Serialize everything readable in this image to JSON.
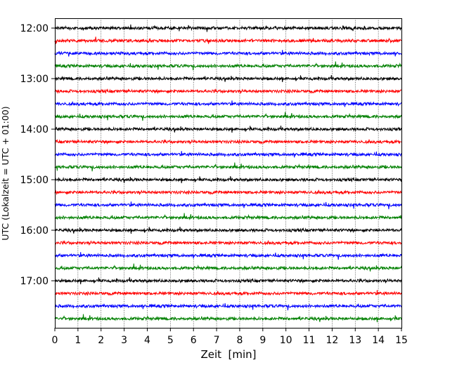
{
  "chart_data": {
    "type": "line",
    "title": "",
    "xlabel": "Zeit  [min]",
    "ylabel": "UTC (Lokalzeit = UTC + 01:00)",
    "xlim": [
      0,
      15
    ],
    "x_ticks": [
      0,
      1,
      2,
      3,
      4,
      5,
      6,
      7,
      8,
      9,
      10,
      11,
      12,
      13,
      14,
      15
    ],
    "y_ticks": [
      "12:00",
      "13:00",
      "14:00",
      "15:00",
      "16:00",
      "17:00"
    ],
    "grid": "vertical dotted",
    "line_interval_minutes": 15,
    "color_cycle": [
      "#000000",
      "#ff0000",
      "#0000ff",
      "#008000"
    ],
    "traces": [
      {
        "start": "12:00",
        "color": "#000000"
      },
      {
        "start": "12:15",
        "color": "#ff0000"
      },
      {
        "start": "12:30",
        "color": "#0000ff"
      },
      {
        "start": "12:45",
        "color": "#008000"
      },
      {
        "start": "13:00",
        "color": "#000000"
      },
      {
        "start": "13:15",
        "color": "#ff0000"
      },
      {
        "start": "13:30",
        "color": "#0000ff"
      },
      {
        "start": "13:45",
        "color": "#008000"
      },
      {
        "start": "14:00",
        "color": "#000000"
      },
      {
        "start": "14:15",
        "color": "#ff0000"
      },
      {
        "start": "14:30",
        "color": "#0000ff"
      },
      {
        "start": "14:45",
        "color": "#008000"
      },
      {
        "start": "15:00",
        "color": "#000000"
      },
      {
        "start": "15:15",
        "color": "#ff0000"
      },
      {
        "start": "15:30",
        "color": "#0000ff"
      },
      {
        "start": "15:45",
        "color": "#008000"
      },
      {
        "start": "16:00",
        "color": "#000000"
      },
      {
        "start": "16:15",
        "color": "#ff0000"
      },
      {
        "start": "16:30",
        "color": "#0000ff"
      },
      {
        "start": "16:45",
        "color": "#008000"
      },
      {
        "start": "17:00",
        "color": "#000000"
      },
      {
        "start": "17:15",
        "color": "#ff0000"
      },
      {
        "start": "17:30",
        "color": "#0000ff"
      },
      {
        "start": "17:45",
        "color": "#008000"
      }
    ]
  }
}
